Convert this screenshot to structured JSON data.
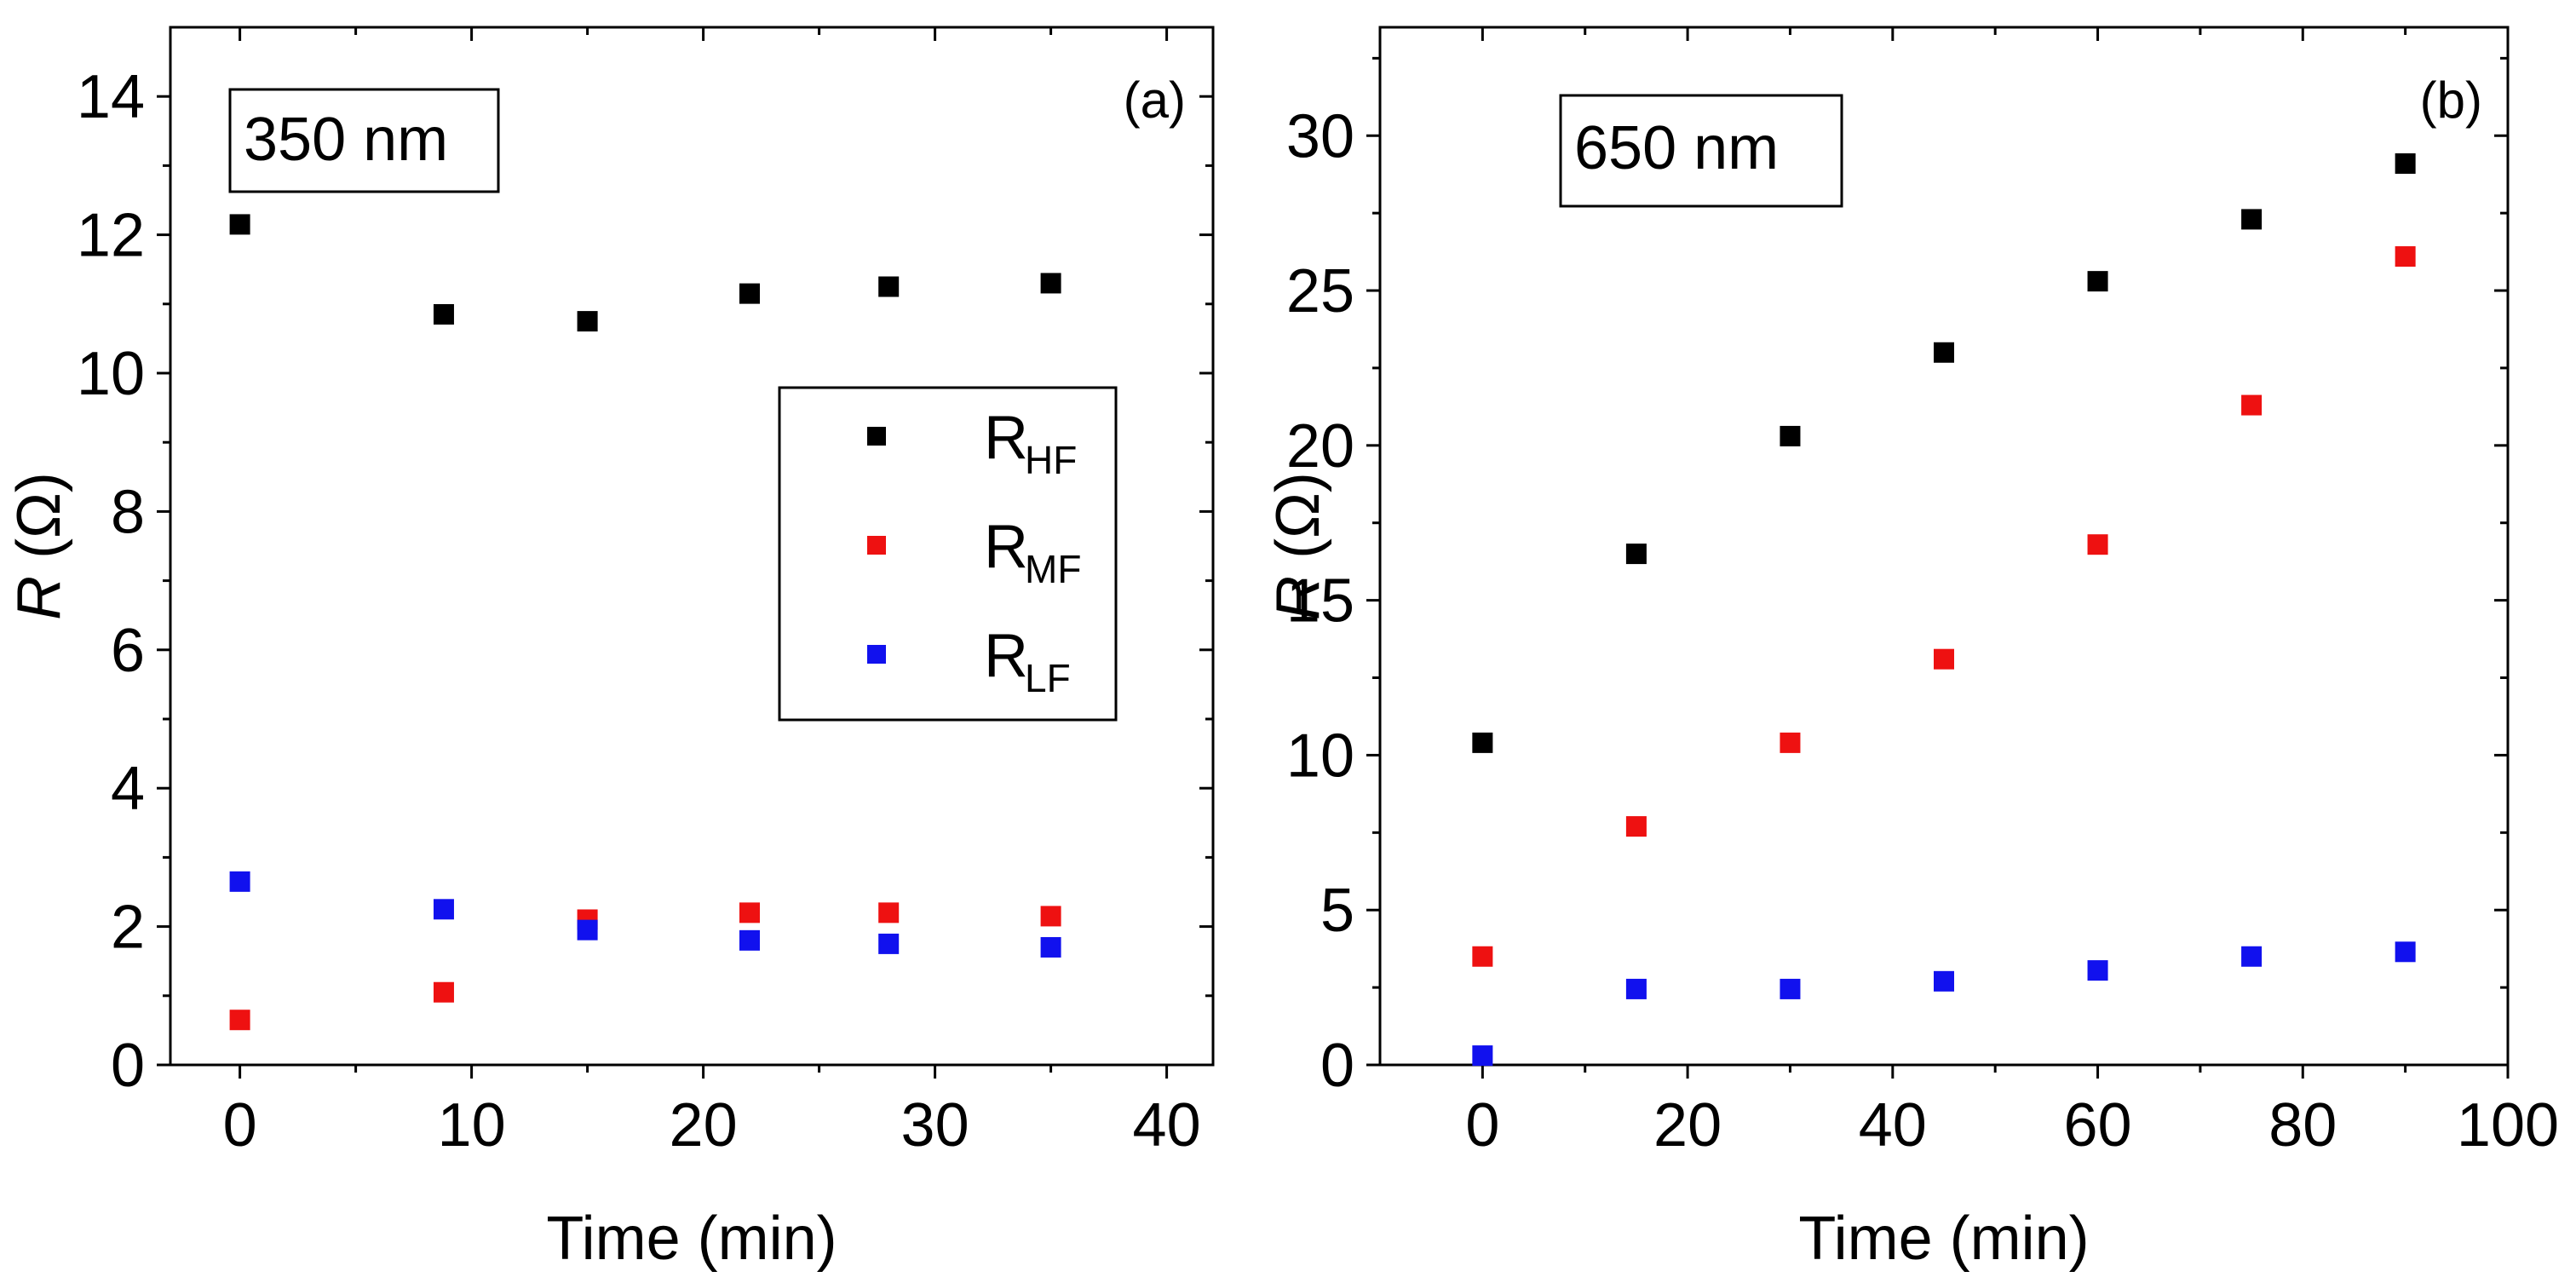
{
  "chart_data": [
    {
      "type": "scatter",
      "panel_label": "(a)",
      "annotation": "350 nm",
      "xlabel": "Time (min)",
      "ylabel_main": "R",
      "ylabel_unit": "(Ω)",
      "xlim": [
        -3,
        42
      ],
      "ylim": [
        0,
        15
      ],
      "xticks": [
        0,
        10,
        20,
        30,
        40
      ],
      "yticks": [
        0,
        2,
        4,
        6,
        8,
        10,
        12,
        14
      ],
      "legend": {
        "placement": "center-right",
        "entries": [
          {
            "main": "R",
            "sub": "HF",
            "color": "#000000"
          },
          {
            "main": "R",
            "sub": "MF",
            "color": "#ee1111"
          },
          {
            "main": "R",
            "sub": "LF",
            "color": "#1111ee"
          }
        ]
      },
      "series": [
        {
          "name": "RHF",
          "color": "#000000",
          "x": [
            0,
            8.8,
            15,
            22,
            28,
            35
          ],
          "y": [
            12.15,
            10.85,
            10.75,
            11.15,
            11.25,
            11.3
          ]
        },
        {
          "name": "RMF",
          "color": "#ee1111",
          "x": [
            0,
            8.8,
            15,
            22,
            28,
            35
          ],
          "y": [
            0.65,
            1.05,
            2.1,
            2.2,
            2.2,
            2.15
          ]
        },
        {
          "name": "RLF",
          "color": "#1111ee",
          "x": [
            0,
            8.8,
            15,
            22,
            28,
            35
          ],
          "y": [
            2.65,
            2.25,
            1.95,
            1.8,
            1.75,
            1.7
          ]
        }
      ]
    },
    {
      "type": "scatter",
      "panel_label": "(b)",
      "annotation": "650 nm",
      "xlabel": "Time (min)",
      "ylabel_main": "R",
      "ylabel_unit": "(Ω)",
      "xlim": [
        -10,
        100
      ],
      "ylim": [
        0,
        33.5
      ],
      "xticks": [
        0,
        20,
        40,
        60,
        80,
        100
      ],
      "yticks": [
        0,
        5,
        10,
        15,
        20,
        25,
        30
      ],
      "legend": null,
      "series": [
        {
          "name": "RHF",
          "color": "#000000",
          "x": [
            0,
            15,
            30,
            45,
            60,
            75,
            90
          ],
          "y": [
            10.4,
            16.5,
            20.3,
            23.0,
            25.3,
            27.3,
            29.1
          ]
        },
        {
          "name": "RMF",
          "color": "#ee1111",
          "x": [
            0,
            15,
            30,
            45,
            60,
            75,
            90
          ],
          "y": [
            3.5,
            7.7,
            10.4,
            13.1,
            16.8,
            21.3,
            26.1
          ]
        },
        {
          "name": "RLF",
          "color": "#1111ee",
          "x": [
            0,
            15,
            30,
            45,
            60,
            75,
            90
          ],
          "y": [
            0.3,
            2.45,
            2.45,
            2.7,
            3.05,
            3.5,
            3.65
          ]
        }
      ]
    }
  ]
}
